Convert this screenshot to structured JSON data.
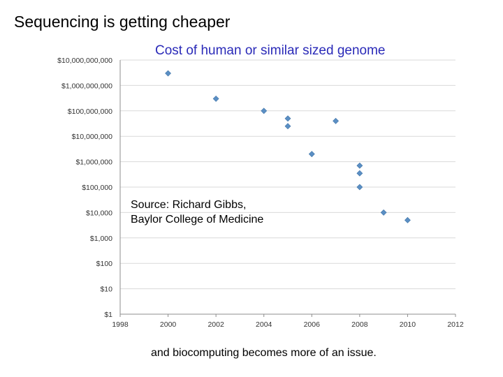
{
  "slide": {
    "title": "Sequencing is getting cheaper",
    "source_line1": "Source: Richard Gibbs,",
    "source_line2": "Baylor College of Medicine",
    "footer": "and biocomputing becomes more of an issue."
  },
  "chart_data": {
    "type": "scatter",
    "title": "Cost of human or similar sized genome",
    "xlabel": "",
    "ylabel": "",
    "xlim": [
      1998,
      2012
    ],
    "x_ticks": [
      "1998",
      "2000",
      "2002",
      "2004",
      "2006",
      "2008",
      "2010",
      "2012"
    ],
    "y_scale": "log",
    "ylim": [
      1,
      10000000000
    ],
    "y_ticks": [
      "$10,000,000,000",
      "$1,000,000,000",
      "$100,000,000",
      "$10,000,000",
      "$1,000,000",
      "$100,000",
      "$10,000",
      "$1,000",
      "$100",
      "$10",
      "$1"
    ],
    "grid": true,
    "marker_color": "#5b8fc4",
    "points": [
      {
        "x": 2000,
        "y": 3000000000
      },
      {
        "x": 2002,
        "y": 300000000
      },
      {
        "x": 2004,
        "y": 100000000
      },
      {
        "x": 2005,
        "y": 50000000
      },
      {
        "x": 2005,
        "y": 25000000
      },
      {
        "x": 2006,
        "y": 2000000
      },
      {
        "x": 2007,
        "y": 40000000
      },
      {
        "x": 2008,
        "y": 700000
      },
      {
        "x": 2008,
        "y": 350000
      },
      {
        "x": 2008,
        "y": 100000
      },
      {
        "x": 2009,
        "y": 10000
      },
      {
        "x": 2010,
        "y": 5000
      }
    ]
  }
}
